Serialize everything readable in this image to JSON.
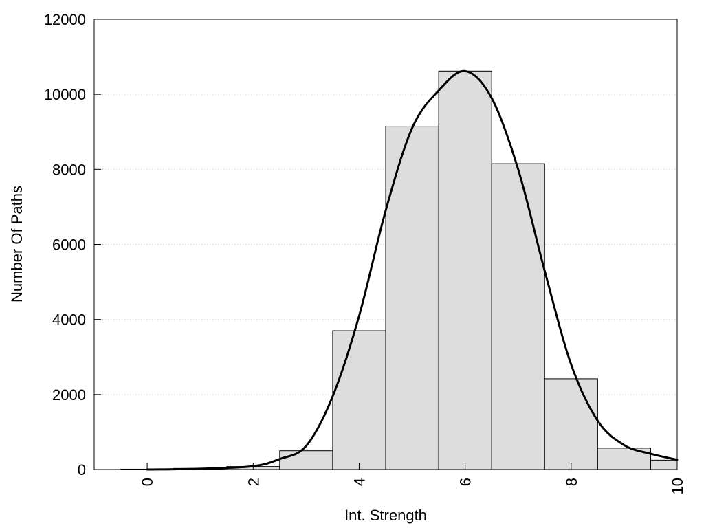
{
  "chart_data": {
    "type": "bar",
    "xlabel": "Int. Strength",
    "ylabel": "Number Of Paths",
    "xlim": [
      -1,
      10
    ],
    "ylim": [
      0,
      12000
    ],
    "x_ticks": [
      0,
      2,
      4,
      6,
      8,
      10
    ],
    "y_ticks": [
      0,
      2000,
      4000,
      6000,
      8000,
      10000,
      12000
    ],
    "grid": "horizontal dotted",
    "bars": {
      "centers": [
        0,
        1,
        2,
        3,
        4,
        5,
        6,
        7,
        8,
        9,
        10
      ],
      "width": 1,
      "values": [
        10,
        30,
        80,
        500,
        3700,
        9150,
        10620,
        8150,
        2420,
        570,
        250
      ]
    },
    "curve": {
      "x": [
        0,
        1,
        2,
        2.5,
        3,
        3.5,
        4,
        4.5,
        5,
        5.5,
        6,
        6.5,
        7,
        7.5,
        8,
        8.5,
        9,
        9.5,
        10
      ],
      "y": [
        0,
        20,
        90,
        280,
        630,
        1950,
        4100,
        6900,
        9100,
        10100,
        10620,
        9900,
        8000,
        5300,
        2800,
        1300,
        650,
        420,
        260
      ]
    },
    "colors": {
      "bar_fill": "#dddddd",
      "bar_stroke": "#000000",
      "curve": "#000000"
    }
  }
}
